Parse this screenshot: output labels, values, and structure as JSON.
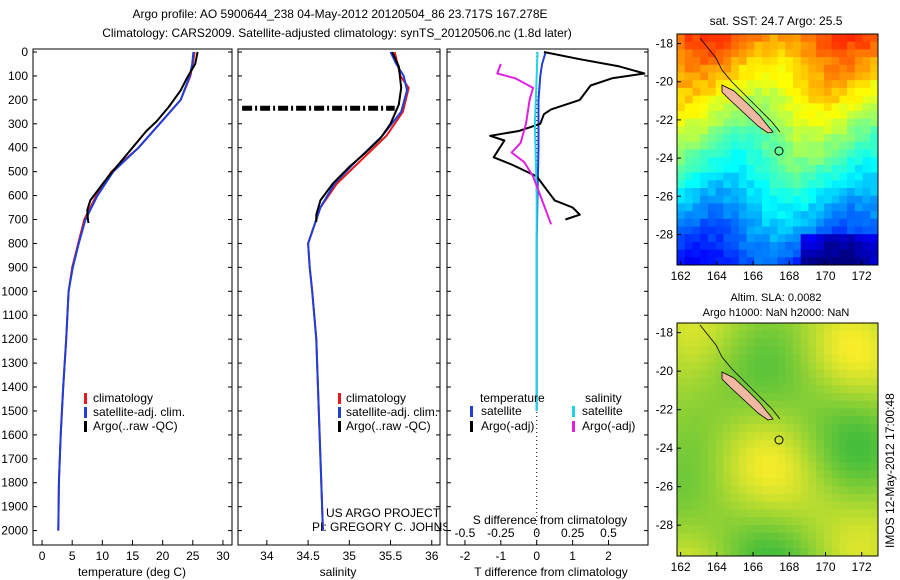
{
  "header": {
    "line1": "Argo profile: AO 5900644_238 04-May-2012 20120504_86 23.717S 167.278E",
    "line2": "Climatology: CARS2009. Satellite-adjusted climatology: synTS_20120506.nc (1.8d later)"
  },
  "footer": {
    "project": "US ARGO PROJECT",
    "pi": "PI: GREGORY C. JOHNSON",
    "timestamp": "IMOS 12-May-2012 17:00:48"
  },
  "colors": {
    "climatology": "#e41a1c",
    "satellite": "#1f3fd9",
    "argo": "#000000",
    "sal_satellite": "#22d3e6",
    "sal_argo": "#e020e0"
  },
  "chart_data": [
    {
      "type": "line",
      "title": "",
      "xlabel": "temperature (deg C)",
      "ylabel": "",
      "xlim": [
        -1.5,
        31.5
      ],
      "ylim": [
        2090,
        0
      ],
      "xticks": [
        "0",
        "5",
        "10",
        "15",
        "20",
        "25",
        "30"
      ],
      "yticks": [
        "0",
        "100",
        "200",
        "300",
        "400",
        "500",
        "600",
        "700",
        "800",
        "900",
        "1000",
        "1100",
        "1200",
        "1300",
        "1400",
        "1500",
        "1600",
        "1700",
        "1800",
        "1900",
        "2000"
      ],
      "legend": [
        "climatology",
        "satellite-adj. clim.",
        "Argo(..raw -QC)"
      ],
      "series": [
        {
          "name": "climatology",
          "color": "climatology",
          "points": [
            [
              25.3,
              0
            ],
            [
              25,
              50
            ],
            [
              24.6,
              100
            ],
            [
              23,
              200
            ],
            [
              19.5,
              300
            ],
            [
              16,
              400
            ],
            [
              11.5,
              500
            ],
            [
              9,
              600
            ],
            [
              7,
              700
            ],
            [
              6,
              800
            ],
            [
              5,
              900
            ],
            [
              4.4,
              1000
            ],
            [
              4,
              1200
            ],
            [
              3.5,
              1400
            ],
            [
              3.1,
              1600
            ],
            [
              2.8,
              1800
            ],
            [
              2.7,
              2000
            ]
          ]
        },
        {
          "name": "satellite-adj. clim.",
          "color": "satellite",
          "points": [
            [
              25.1,
              0
            ],
            [
              24.9,
              50
            ],
            [
              24.5,
              100
            ],
            [
              23,
              200
            ],
            [
              19.5,
              300
            ],
            [
              16,
              400
            ],
            [
              11.8,
              500
            ],
            [
              9.2,
              600
            ],
            [
              7.2,
              700
            ],
            [
              6.1,
              800
            ],
            [
              5.1,
              900
            ],
            [
              4.4,
              1000
            ],
            [
              4,
              1200
            ],
            [
              3.5,
              1400
            ],
            [
              3.1,
              1600
            ],
            [
              2.8,
              1800
            ],
            [
              2.7,
              2000
            ]
          ]
        },
        {
          "name": "Argo(..raw -QC)",
          "color": "argo",
          "points": [
            [
              25.8,
              0
            ],
            [
              25.4,
              50
            ],
            [
              24,
              110
            ],
            [
              23,
              160
            ],
            [
              21,
              230
            ],
            [
              19,
              290
            ],
            [
              17.3,
              330
            ],
            [
              15,
              400
            ],
            [
              13,
              460
            ],
            [
              11,
              520
            ],
            [
              9.5,
              570
            ],
            [
              8,
              620
            ],
            [
              7.5,
              660
            ],
            [
              7.6,
              700
            ],
            [
              7.7,
              715
            ]
          ]
        }
      ]
    },
    {
      "type": "line",
      "title": "",
      "xlabel": "salinity",
      "ylabel": "",
      "xlim": [
        33.65,
        36.1
      ],
      "ylim": [
        2090,
        0
      ],
      "xticks": [
        "34",
        "34.5",
        "35",
        "35.5",
        "36"
      ],
      "legend": [
        "climatology",
        "satellite-adj. clim.",
        "Argo(..raw -QC)"
      ],
      "series": [
        {
          "name": "climatology",
          "color": "climatology",
          "points": [
            [
              35.55,
              0
            ],
            [
              35.62,
              100
            ],
            [
              35.72,
              150
            ],
            [
              35.65,
              250
            ],
            [
              35.45,
              350
            ],
            [
              35.15,
              450
            ],
            [
              34.85,
              550
            ],
            [
              34.65,
              650
            ],
            [
              34.55,
              750
            ],
            [
              34.5,
              800
            ],
            [
              34.52,
              900
            ],
            [
              34.55,
              1000
            ],
            [
              34.6,
              1200
            ],
            [
              34.63,
              1500
            ],
            [
              34.66,
              1800
            ],
            [
              34.68,
              2000
            ]
          ]
        },
        {
          "name": "satellite-adj. clim.",
          "color": "satellite",
          "points": [
            [
              35.5,
              0
            ],
            [
              35.57,
              50
            ],
            [
              35.66,
              100
            ],
            [
              35.7,
              160
            ],
            [
              35.63,
              250
            ],
            [
              35.4,
              350
            ],
            [
              35.1,
              450
            ],
            [
              34.82,
              550
            ],
            [
              34.65,
              650
            ],
            [
              34.55,
              750
            ],
            [
              34.5,
              800
            ],
            [
              34.52,
              900
            ],
            [
              34.55,
              1000
            ],
            [
              34.6,
              1200
            ],
            [
              34.63,
              1500
            ],
            [
              34.66,
              1800
            ],
            [
              34.68,
              2000
            ]
          ]
        },
        {
          "name": "Argo(..raw -QC)",
          "color": "argo",
          "points": [
            [
              35.52,
              0
            ],
            [
              35.6,
              60
            ],
            [
              35.63,
              150
            ],
            [
              35.6,
              220
            ],
            [
              35.5,
              300
            ],
            [
              35.38,
              360
            ],
            [
              35.2,
              420
            ],
            [
              35,
              480
            ],
            [
              34.8,
              550
            ],
            [
              34.65,
              620
            ],
            [
              34.6,
              680
            ],
            [
              34.6,
              710
            ]
          ]
        },
        {
          "name": "Argo flagged",
          "color": "argo",
          "dash": "10 3 2 3",
          "points": [
            [
              33.7,
              235
            ],
            [
              35.55,
              235
            ]
          ]
        }
      ]
    },
    {
      "type": "line",
      "title": "",
      "xlabel": "T difference from climatology",
      "xlabel2": "S difference from climatology",
      "ylabel": "",
      "xlim": [
        -2.5,
        3.1
      ],
      "ylim": [
        2090,
        0
      ],
      "xticks": [
        "-2",
        "-1",
        "0",
        "1",
        "2"
      ],
      "xticks2": [
        "-0.5",
        "-0.25",
        "0",
        "0.25",
        "0.5"
      ],
      "legend_titles": [
        "temperature",
        "salinity"
      ],
      "legend": [
        "satellite",
        "Argo(-adj)",
        "satellite",
        "Argo(-adj)"
      ],
      "series": [
        {
          "name": "T satellite",
          "color": "satellite",
          "points": [
            [
              0.25,
              0
            ],
            [
              0.15,
              50
            ],
            [
              0.1,
              100
            ],
            [
              0.05,
              200
            ],
            [
              0.05,
              400
            ],
            [
              0.02,
              600
            ],
            [
              0,
              800
            ],
            [
              0,
              1000
            ],
            [
              0,
              1200
            ],
            [
              0,
              1500
            ]
          ]
        },
        {
          "name": "T Argo(-adj)",
          "color": "argo",
          "points": [
            [
              0.2,
              0
            ],
            [
              1.2,
              30
            ],
            [
              2.3,
              60
            ],
            [
              3.0,
              90
            ],
            [
              2.1,
              110
            ],
            [
              1.5,
              140
            ],
            [
              1.2,
              200
            ],
            [
              0.4,
              240
            ],
            [
              0.2,
              260
            ],
            [
              0.1,
              300
            ],
            [
              -0.5,
              330
            ],
            [
              -1.3,
              350
            ],
            [
              -0.9,
              370
            ],
            [
              -1.2,
              440
            ],
            [
              -0.7,
              470
            ],
            [
              0,
              520
            ],
            [
              0.3,
              580
            ],
            [
              0.5,
              620
            ],
            [
              1.0,
              650
            ],
            [
              1.2,
              680
            ],
            [
              0.8,
              700
            ]
          ]
        },
        {
          "name": "S satellite",
          "color": "sal_satellite",
          "points": [
            [
              0.02,
              0
            ],
            [
              0,
              100
            ],
            [
              -0.05,
              300
            ],
            [
              0,
              600
            ],
            [
              0,
              1000
            ],
            [
              0,
              1500
            ]
          ]
        },
        {
          "name": "S Argo(-adj)",
          "color": "sal_argo",
          "points": [
            [
              -1.0,
              50
            ],
            [
              -1.1,
              90
            ],
            [
              -0.6,
              110
            ],
            [
              -0.1,
              150
            ],
            [
              -0.2,
              200
            ],
            [
              -0.3,
              300
            ],
            [
              -0.45,
              380
            ],
            [
              -0.7,
              420
            ],
            [
              -0.35,
              460
            ],
            [
              -0.1,
              520
            ],
            [
              0.1,
              600
            ],
            [
              0.3,
              680
            ],
            [
              0.4,
              720
            ]
          ]
        }
      ],
      "zero_line": true
    },
    {
      "type": "heatmap",
      "title": "sat. SST: 24.7  Argo: 25.5",
      "xlim": [
        161.8,
        172.9
      ],
      "ylim": [
        -29.6,
        -17.5
      ],
      "xticks": [
        "162",
        "164",
        "166",
        "168",
        "170",
        "172"
      ],
      "yticks": [
        "-18",
        "-20",
        "-22",
        "-24",
        "-26",
        "-28"
      ],
      "palette": "jet",
      "profile_location": [
        167.278,
        -23.717
      ]
    },
    {
      "type": "heatmap",
      "title": "Altim. SLA: 0.0082",
      "subtitle": "Argo h1000: NaN h2000: NaN",
      "xlim": [
        161.8,
        172.9
      ],
      "ylim": [
        -29.6,
        -17.5
      ],
      "xticks": [
        "162",
        "164",
        "166",
        "168",
        "170",
        "172"
      ],
      "yticks": [
        "-18",
        "-20",
        "-22",
        "-24",
        "-26",
        "-28"
      ],
      "palette": "green-yellow",
      "profile_location": [
        167.278,
        -23.717
      ]
    }
  ]
}
